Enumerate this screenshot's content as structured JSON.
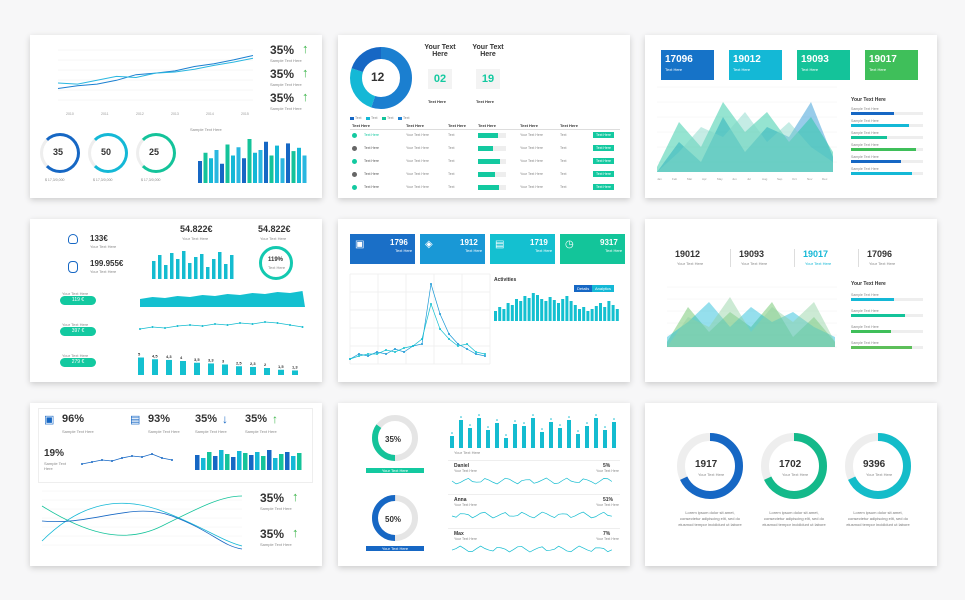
{
  "slide1": {
    "items": [
      {
        "pct": "35%",
        "label": "Sample Text Here"
      },
      {
        "pct": "35%",
        "label": "Sample Text Here"
      },
      {
        "pct": "35%",
        "label": "Sample Text Here"
      }
    ],
    "years": [
      "2010",
      "2011",
      "2012",
      "2013",
      "2014",
      "2015"
    ],
    "rings": [
      {
        "v": "35",
        "cap": "$ 17,3/0,000"
      },
      {
        "v": "50",
        "cap": "$ 17,3/0,000"
      },
      {
        "v": "25",
        "cap": "$ 17,3/0,000"
      }
    ],
    "bar_title": "Sample Text Here",
    "bar_values": [
      40,
      55,
      45,
      60,
      35,
      70,
      50,
      65,
      45,
      80,
      55,
      60,
      75,
      50,
      68,
      45,
      72,
      58,
      64,
      50
    ],
    "line_a": [
      30,
      35,
      38,
      45,
      55,
      58,
      62,
      70,
      75,
      82,
      90
    ],
    "line_b": [
      40,
      38,
      45,
      52,
      50,
      58,
      60,
      65,
      72,
      78,
      85
    ]
  },
  "slide2": {
    "donut": "12",
    "legend": [
      "Text",
      "Text",
      "Text",
      "Text"
    ],
    "heads": [
      {
        "title": "Your Text Here",
        "val": "02",
        "cap": "Text Here"
      },
      {
        "title": "Your Text Here",
        "val": "19",
        "cap": "Text Here"
      }
    ],
    "cols": [
      "Text Here",
      "Text Here",
      "Text Here",
      "Text Here",
      "Text Here",
      "Text Here"
    ],
    "rows": [
      {
        "name": "Text Here",
        "desc": "Your Text Here",
        "c": "Text",
        "p": 0.7,
        "btn": "Text Here"
      },
      {
        "name": "Text Here",
        "desc": "Your Text Here",
        "c": "Text",
        "p": 0.55,
        "btn": "Text Here"
      },
      {
        "name": "Text Here",
        "desc": "Your Text Here",
        "c": "Text",
        "p": 0.8,
        "btn": "Text Here"
      },
      {
        "name": "Text Here",
        "desc": "Your Text Here",
        "c": "Text",
        "p": 0.6,
        "btn": "Text Here"
      },
      {
        "name": "Text Here",
        "desc": "Your Text Here",
        "c": "Text",
        "p": 0.75,
        "btn": "Text Here"
      }
    ]
  },
  "slide3": {
    "kpis": [
      {
        "n": "17096",
        "t": "Text Here",
        "c": "#1673c8"
      },
      {
        "n": "19012",
        "t": "Text Here",
        "c": "#14b8d6"
      },
      {
        "n": "19093",
        "t": "Text Here",
        "c": "#14c39a"
      },
      {
        "n": "19017",
        "t": "Text Here",
        "c": "#3fbf5a"
      }
    ],
    "side_title": "Your Text Here",
    "side": [
      {
        "t": "Sample Text Here",
        "p": 0.6
      },
      {
        "t": "Sample Text Here",
        "p": 0.8
      },
      {
        "t": "Sample Text Here",
        "p": 0.5
      },
      {
        "t": "Sample Text Here",
        "p": 0.9
      },
      {
        "t": "Sample Text Here",
        "p": 0.7
      },
      {
        "t": "Sample Text Here",
        "p": 0.85
      }
    ],
    "months": [
      "Jan",
      "Feb",
      "Mar",
      "Apr",
      "May",
      "Jun",
      "Jul",
      "Aug",
      "Sep",
      "Oct",
      "Nov",
      "Dec"
    ]
  },
  "slide4": {
    "a": "133€",
    "a_t": "Your Text Here",
    "b": "199.955€",
    "b_t": "Your Text Here",
    "pills": [
      {
        "lab": "Your Text Here",
        "v": "119 €"
      },
      {
        "lab": "Your Text Here",
        "v": "397 €"
      },
      {
        "lab": "Your Text Here",
        "v": "279 €"
      }
    ],
    "m1": "54.822€",
    "m1_t": "Your Text Here",
    "m2": "54.822€",
    "m2_t": "Your Text Here",
    "gauge": "119%",
    "gauge_t": "Text Here",
    "bars": [
      5,
      4.5,
      4.3,
      4,
      3.5,
      3.3,
      3,
      2.5,
      2.3,
      2,
      1.5,
      1.3
    ],
    "bar_labels": [
      "5",
      "4,5",
      "4,3",
      "4",
      "3,5",
      "3,3",
      "3",
      "2,5",
      "2,3",
      "2",
      "1,5",
      "1,3"
    ]
  },
  "slide5": {
    "kpis": [
      {
        "n": "1796",
        "t": "Text Here",
        "c": "#1a6fc7",
        "icon": "briefcase-icon"
      },
      {
        "n": "1912",
        "t": "Text Here",
        "c": "#1998d6",
        "icon": "layers-icon"
      },
      {
        "n": "1719",
        "t": "Text Here",
        "c": "#14c0d0",
        "icon": "presentation-icon"
      },
      {
        "n": "9317",
        "t": "Text Here",
        "c": "#13c59a",
        "icon": "clock-icon"
      }
    ],
    "act": "Activities",
    "btn1": "Details",
    "btn2": "Analytics"
  },
  "slide6": {
    "kpis": [
      {
        "n": "19012",
        "t": "Your Text Here"
      },
      {
        "n": "19093",
        "t": "Your Text Here"
      },
      {
        "n": "19017",
        "t": "Your Text Here",
        "hl": true
      },
      {
        "n": "17096",
        "t": "Your Text Here"
      }
    ],
    "side_title": "Your Text Here",
    "side": [
      {
        "t": "Sample Text Here",
        "p": 0.6
      },
      {
        "t": "Sample Text Here",
        "p": 0.75
      },
      {
        "t": "Sample Text Here",
        "p": 0.55
      },
      {
        "t": "Sample Text Here",
        "p": 0.85
      }
    ]
  },
  "slide7": {
    "stats": [
      {
        "v": "96%",
        "t": "Sample Text Here"
      },
      {
        "v": "93%",
        "t": "Sample Text Here"
      },
      {
        "v": "35%",
        "t": "Sample Text Here"
      },
      {
        "v": "35%",
        "t": "Sample Text Here"
      }
    ],
    "mini": "19%",
    "mini_t": "Sample Text Here",
    "right": [
      {
        "v": "35%",
        "t": "Sample Text Here"
      },
      {
        "v": "35%",
        "t": "Sample Text Here"
      }
    ]
  },
  "slide8": {
    "g1": "35%",
    "g1_t": "Your Text Here",
    "g2": "50%",
    "g2_t": "Your Text Here",
    "bar_cap": "Your Text Here",
    "rows": [
      {
        "n": "Daniel",
        "t": "Your Text Here",
        "p": "5%"
      },
      {
        "n": "Anna",
        "t": "Your Text Here",
        "p": "51%"
      },
      {
        "n": "Max",
        "t": "Your Text Here",
        "p": "7%"
      }
    ]
  },
  "slide9": {
    "rings": [
      {
        "v": "1917",
        "t": "Your Text Here",
        "c": "#1667c4"
      },
      {
        "v": "1702",
        "t": "Your Text Here",
        "c": "#14b98a"
      },
      {
        "v": "9396",
        "t": "Your Text Here",
        "c": "#14bcc9"
      }
    ],
    "para": "Lorem ipsum dolor sit amet, consectetur adipiscing elit, sed do eiusmod tempor incididunt ut labore"
  }
}
